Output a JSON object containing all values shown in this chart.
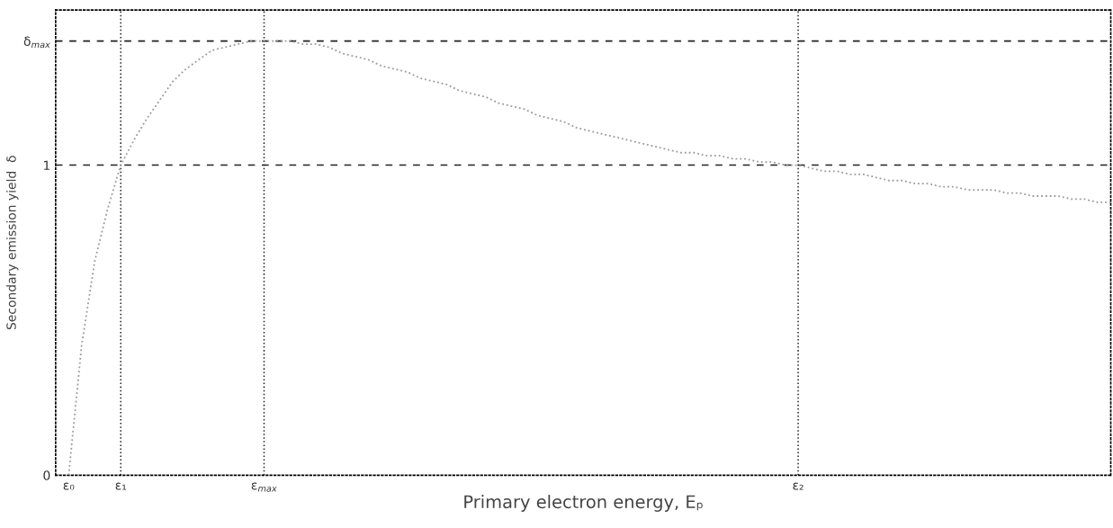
{
  "chart_data": {
    "type": "line",
    "xlabel": "Primary electron energy, Eₚ",
    "ylabel": "Secondary emission yield  δ",
    "categories": [
      "ε₀",
      null,
      null,
      null,
      "ε₁",
      null,
      null,
      null,
      null,
      null,
      null,
      null,
      null,
      null,
      null,
      "ε$_{max}$",
      null,
      null,
      null,
      null,
      null,
      null,
      null,
      null,
      null,
      null,
      null,
      null,
      null,
      null,
      null,
      null,
      null,
      null,
      null,
      null,
      null,
      null,
      null,
      null,
      null,
      null,
      null,
      null,
      null,
      null,
      null,
      null,
      null,
      null,
      null,
      null,
      null,
      null,
      null,
      null,
      "ε₂",
      null,
      null,
      null,
      null,
      null,
      null,
      null,
      null,
      null,
      null,
      null,
      null,
      null,
      null,
      null,
      null,
      null,
      null,
      null,
      null,
      null,
      null,
      null,
      null
    ],
    "series": [
      {
        "color": "#9a9a9a",
        "line_style": "dotted",
        "values": [
          0,
          0.42,
          0.69,
          0.86,
          1.0,
          1.08,
          1.15,
          1.21,
          1.27,
          1.31,
          1.34,
          1.37,
          1.38,
          1.39,
          1.4,
          1.4,
          1.4,
          1.4,
          1.39,
          1.39,
          1.38,
          1.36,
          1.35,
          1.34,
          1.32,
          1.31,
          1.3,
          1.28,
          1.27,
          1.26,
          1.24,
          1.23,
          1.22,
          1.2,
          1.19,
          1.18,
          1.16,
          1.15,
          1.14,
          1.12,
          1.11,
          1.1,
          1.09,
          1.08,
          1.07,
          1.06,
          1.05,
          1.04,
          1.04,
          1.03,
          1.03,
          1.02,
          1.02,
          1.01,
          1.01,
          1.0,
          1.0,
          0.99,
          0.98,
          0.98,
          0.97,
          0.97,
          0.96,
          0.95,
          0.95,
          0.94,
          0.94,
          0.93,
          0.93,
          0.92,
          0.92,
          0.92,
          0.91,
          0.91,
          0.9,
          0.9,
          0.9,
          0.89,
          0.89,
          0.88,
          0.88
        ]
      }
    ],
    "ylim": [
      0,
      1.5
    ],
    "yticks": [
      0,
      1,
      {
        "value": 1.4,
        "label": "δ$_{max}$"
      }
    ],
    "ref_lines": [
      {
        "axis": "y",
        "value": 1,
        "line_style": "dashed"
      },
      {
        "axis": "y",
        "value": 1.4,
        "line_style": "dashed"
      },
      {
        "axis": "x",
        "value": "ε₁",
        "line_style": "dotted"
      },
      {
        "axis": "x",
        "value": "ε$_{max}$",
        "line_style": "dotted"
      },
      {
        "axis": "x",
        "value": "ε₂",
        "line_style": "dotted"
      }
    ],
    "grid": false,
    "legend": false
  }
}
